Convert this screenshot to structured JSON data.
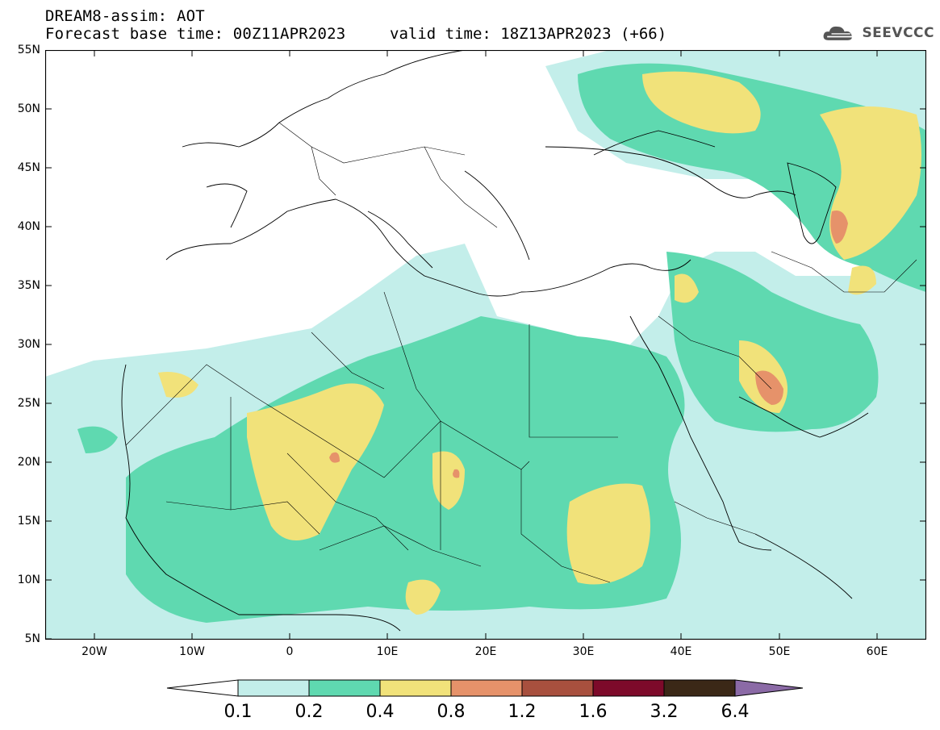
{
  "header": {
    "title": "DREAM8-assim: AOT",
    "base_time": "Forecast base time: 00Z11APR2023",
    "valid_time": "valid time: 18Z13APR2023 (+66)",
    "logo_text": "SEEVCCC"
  },
  "map": {
    "lat_labels": [
      "55N",
      "50N",
      "45N",
      "40N",
      "35N",
      "30N",
      "25N",
      "20N",
      "15N",
      "10N",
      "5N"
    ],
    "lon_labels": [
      "20W",
      "10W",
      "0",
      "10E",
      "20E",
      "30E",
      "40E",
      "50E",
      "60E"
    ],
    "lon_range": [
      -25,
      65
    ],
    "lat_range": [
      5,
      55
    ]
  },
  "colorbar": {
    "levels": [
      "0.1",
      "0.2",
      "0.4",
      "0.8",
      "1.2",
      "1.6",
      "3.2",
      "6.4"
    ],
    "colors": [
      "#ffffff",
      "#c3eeea",
      "#5fd9b0",
      "#f1e27a",
      "#e6926a",
      "#a8503e",
      "#7d0a2a",
      "#3b2817",
      "#8b6aa6"
    ]
  }
}
